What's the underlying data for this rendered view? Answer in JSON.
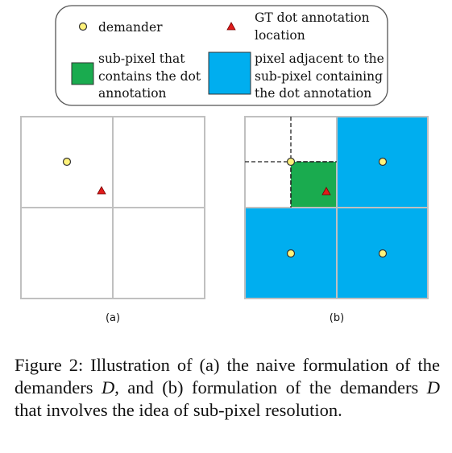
{
  "legend": {
    "demander": "demander",
    "gt_line1": "GT dot annotation",
    "gt_line2": "location",
    "subpixel_line1": "sub-pixel that",
    "subpixel_line2": "contains the dot",
    "subpixel_line3": "annotation",
    "adjacent_line1": "pixel adjacent to the",
    "adjacent_line2": "sub-pixel containing",
    "adjacent_line3": "the dot annotation"
  },
  "panels": {
    "a_label": "(a)",
    "b_label": "(b)"
  },
  "caption": {
    "part1": "Figure 2: Illustration of (a) the naive formulation of the demanders ",
    "var1": "D",
    "part2": ", and (b) formulation of the demanders ",
    "var2": "D",
    "part3": " that involves the idea of sub-pixel resolution."
  },
  "colors": {
    "demander_fill": "#fff27a",
    "annotation_fill": "#e01b1b",
    "subpixel_fill": "#1aab4f",
    "adjacent_fill": "#00aeef",
    "grid_line": "#c0c0c0"
  }
}
